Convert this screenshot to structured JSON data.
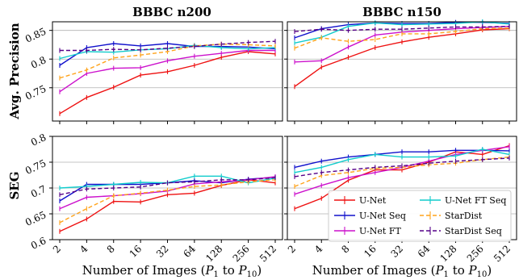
{
  "chart_data": {
    "type": "line",
    "columns": [
      {
        "title": "BBBC n200"
      },
      {
        "title": "BBBC n150"
      }
    ],
    "rows": [
      {
        "ylabel": "Avg. Precision"
      },
      {
        "ylabel": "SEG"
      }
    ],
    "xlabel_prefix": "Number of Images (",
    "xlabel_p1": "P",
    "xlabel_p1_sub": "1",
    "xlabel_mid": " to ",
    "xlabel_p2": "P",
    "xlabel_p2_sub": "10",
    "xlabel_suffix": ")",
    "x": [
      "2",
      "4",
      "8",
      "16",
      "32",
      "64",
      "128",
      "256",
      "512"
    ],
    "legend": [
      {
        "name": "U-Net",
        "color": "#ee1111",
        "dash": "solid"
      },
      {
        "name": "U-Net Seq",
        "color": "#1010cc",
        "dash": "solid"
      },
      {
        "name": "U-Net FT",
        "color": "#cc11cc",
        "dash": "solid"
      },
      {
        "name": "U-Net FT Seq",
        "color": "#11cccc",
        "dash": "solid"
      },
      {
        "name": "StarDist",
        "color": "#ffa31a",
        "dash": "dashed"
      },
      {
        "name": "StarDist Seq",
        "color": "#550088",
        "dash": "dashed"
      }
    ],
    "legend_placement": "lower-right (bottom-right panel)",
    "grid": "horizontal",
    "panels": [
      {
        "row": 0,
        "col": 0,
        "ylim": [
          0.692,
          0.865
        ],
        "yticks": [
          0.75,
          0.8,
          0.85
        ],
        "yticklabels": [
          "0.75",
          "0.8",
          "0.85"
        ],
        "series": [
          {
            "name": "U-Net",
            "values": [
              0.705,
              0.733,
              0.751,
              0.772,
              0.778,
              0.789,
              0.803,
              0.813,
              0.809
            ]
          },
          {
            "name": "U-Net Seq",
            "values": [
              0.789,
              0.82,
              0.827,
              0.823,
              0.827,
              0.822,
              0.822,
              0.821,
              0.818
            ]
          },
          {
            "name": "U-Net FT",
            "values": [
              0.743,
              0.775,
              0.784,
              0.785,
              0.797,
              0.805,
              0.81,
              0.815,
              0.815
            ]
          },
          {
            "name": "U-Net FT Seq",
            "values": [
              0.801,
              0.813,
              0.812,
              0.816,
              0.818,
              0.824,
              0.82,
              0.818,
              0.82
            ]
          },
          {
            "name": "StarDist",
            "values": [
              0.767,
              0.781,
              0.802,
              0.807,
              0.813,
              0.823,
              0.826,
              0.825,
              0.823
            ]
          },
          {
            "name": "StarDist Seq",
            "values": [
              0.815,
              0.815,
              0.817,
              0.816,
              0.819,
              0.822,
              0.826,
              0.829,
              0.831
            ]
          }
        ]
      },
      {
        "row": 0,
        "col": 1,
        "ylim": [
          0.692,
          0.865
        ],
        "yticks": [
          0.75,
          0.8,
          0.85
        ],
        "yticklabels": [
          "",
          "",
          ""
        ],
        "series": [
          {
            "name": "U-Net",
            "values": [
              0.752,
              0.786,
              0.803,
              0.82,
              0.83,
              0.838,
              0.844,
              0.851,
              0.853
            ]
          },
          {
            "name": "U-Net Seq",
            "values": [
              0.837,
              0.853,
              0.86,
              0.863,
              0.862,
              0.862,
              0.864,
              0.864,
              0.862
            ]
          },
          {
            "name": "U-Net FT",
            "values": [
              0.795,
              0.797,
              0.821,
              0.842,
              0.847,
              0.85,
              0.853,
              0.855,
              0.857
            ]
          },
          {
            "name": "U-Net FT Seq",
            "values": [
              0.828,
              0.838,
              0.857,
              0.863,
              0.86,
              0.861,
              0.862,
              0.865,
              0.861
            ]
          },
          {
            "name": "StarDist",
            "values": [
              0.819,
              0.837,
              0.831,
              0.834,
              0.844,
              0.844,
              0.848,
              0.853,
              0.854
            ]
          },
          {
            "name": "StarDist Seq",
            "values": [
              0.848,
              0.852,
              0.85,
              0.852,
              0.852,
              0.854,
              0.856,
              0.856,
              0.857
            ]
          }
        ]
      },
      {
        "row": 1,
        "col": 0,
        "ylim": [
          0.6,
          0.8
        ],
        "yticks": [
          0.6,
          0.65,
          0.7,
          0.75,
          0.8
        ],
        "yticklabels": [
          "0.6",
          "0.65",
          "0.7",
          "0.75",
          "0.8"
        ],
        "series": [
          {
            "name": "U-Net",
            "values": [
              0.616,
              0.64,
              0.674,
              0.673,
              0.687,
              0.69,
              0.705,
              0.716,
              0.71
            ]
          },
          {
            "name": "U-Net Seq",
            "values": [
              0.675,
              0.707,
              0.707,
              0.707,
              0.71,
              0.714,
              0.71,
              0.717,
              0.721
            ]
          },
          {
            "name": "U-Net FT",
            "values": [
              0.66,
              0.682,
              0.685,
              0.689,
              0.694,
              0.708,
              0.712,
              0.716,
              0.722
            ]
          },
          {
            "name": "U-Net FT Seq",
            "values": [
              0.7,
              0.703,
              0.707,
              0.711,
              0.71,
              0.723,
              0.723,
              0.71,
              0.719
            ]
          },
          {
            "name": "StarDist",
            "values": [
              0.633,
              0.66,
              0.685,
              0.69,
              0.696,
              0.703,
              0.706,
              0.712,
              0.716
            ]
          },
          {
            "name": "StarDist Seq",
            "values": [
              0.687,
              0.698,
              0.7,
              0.702,
              0.71,
              0.712,
              0.716,
              0.716,
              0.72
            ]
          }
        ]
      },
      {
        "row": 1,
        "col": 1,
        "ylim": [
          0.6,
          0.8
        ],
        "yticks": [
          0.6,
          0.65,
          0.7,
          0.75,
          0.8
        ],
        "yticklabels": [
          "",
          "",
          "",
          "",
          ""
        ],
        "series": [
          {
            "name": "U-Net",
            "values": [
              0.66,
              0.68,
              0.715,
              0.735,
              0.735,
              0.75,
              0.77,
              0.765,
              0.782
            ]
          },
          {
            "name": "U-Net Seq",
            "values": [
              0.74,
              0.752,
              0.76,
              0.765,
              0.77,
              0.77,
              0.773,
              0.773,
              0.772
            ]
          },
          {
            "name": "U-Net FT",
            "values": [
              0.688,
              0.705,
              0.72,
              0.73,
              0.74,
              0.752,
              0.765,
              0.773,
              0.78
            ]
          },
          {
            "name": "U-Net FT Seq",
            "values": [
              0.73,
              0.74,
              0.755,
              0.765,
              0.76,
              0.76,
              0.762,
              0.775,
              0.765
            ]
          },
          {
            "name": "StarDist",
            "values": [
              0.703,
              0.724,
              0.73,
              0.738,
              0.74,
              0.745,
              0.748,
              0.755,
              0.76
            ]
          },
          {
            "name": "StarDist Seq",
            "values": [
              0.722,
              0.73,
              0.735,
              0.74,
              0.743,
              0.748,
              0.752,
              0.755,
              0.758
            ]
          }
        ]
      }
    ]
  }
}
